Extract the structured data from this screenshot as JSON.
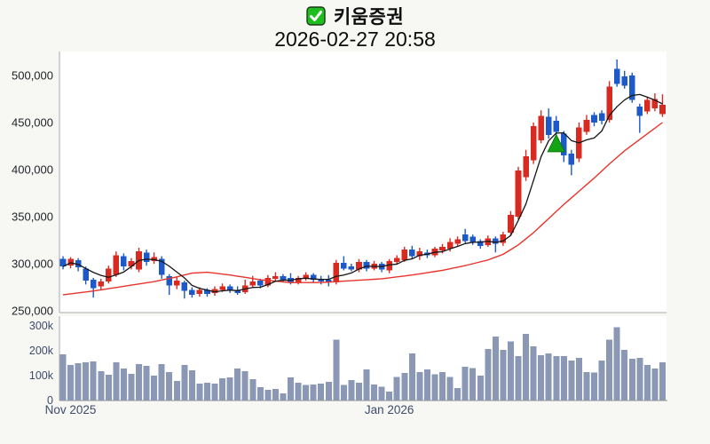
{
  "header": {
    "title": "키움증권",
    "subtitle": "2026-02-27 20:58",
    "checkbox_icon": "green-checked-checkbox"
  },
  "colors": {
    "up_candle": "#d92a21",
    "down_candle": "#1d59c8",
    "ma_fast": "#151515",
    "ma_slow": "#e8342c",
    "volume_bar": "#8a97b5",
    "marker_green": "#15a315",
    "marker_green_edge": "#0b7a0b",
    "axis_line": "#aaaaaa",
    "axis_baseline": "#8c8c8c",
    "price_label": "#1e2226",
    "volume_label": "#3e4b6b",
    "plot_bg": "#ffffff",
    "page_bg": "#f7f7f4",
    "checkbox_green": "#1fbe1f",
    "checkbox_border": "#1c3a1c"
  },
  "chart_data": {
    "type": "candlestick+volume",
    "title": "키움증권",
    "timestamp": "2026-02-27 20:58",
    "legend_position": "none",
    "grid": false,
    "price_axis": {
      "range": [
        250000,
        500000
      ],
      "ticks": [
        {
          "value": 250000,
          "label": "250,000"
        },
        {
          "value": 300000,
          "label": "300,000"
        },
        {
          "value": 350000,
          "label": "350,000"
        },
        {
          "value": 400000,
          "label": "400,000"
        },
        {
          "value": 450000,
          "label": "450,000"
        },
        {
          "value": 500000,
          "label": "500,000"
        }
      ]
    },
    "volume_axis": {
      "range": [
        0,
        300000
      ],
      "ticks": [
        {
          "value": 0,
          "label": "0"
        },
        {
          "value": 100000,
          "label": "100k"
        },
        {
          "value": 200000,
          "label": "200k"
        },
        {
          "value": 300000,
          "label": "300k"
        }
      ]
    },
    "x_ticks": [
      {
        "index": 1,
        "label": "Nov 2025"
      },
      {
        "index": 43,
        "label": "Jan 2026"
      }
    ],
    "candles_format": [
      "open",
      "high",
      "low",
      "close"
    ],
    "candles": [
      [
        305000,
        308000,
        294000,
        297000
      ],
      [
        298000,
        307000,
        295000,
        305000
      ],
      [
        304000,
        306000,
        292000,
        296000
      ],
      [
        295000,
        297000,
        278000,
        282000
      ],
      [
        283000,
        285000,
        264000,
        274000
      ],
      [
        276000,
        284000,
        272000,
        281000
      ],
      [
        281000,
        298000,
        279000,
        295000
      ],
      [
        288000,
        313000,
        286000,
        309000
      ],
      [
        308000,
        311000,
        293000,
        297000
      ],
      [
        297000,
        306000,
        294000,
        303000
      ],
      [
        294000,
        317000,
        291000,
        313000
      ],
      [
        312000,
        315000,
        298000,
        302000
      ],
      [
        303000,
        312000,
        300000,
        307000
      ],
      [
        305000,
        308000,
        284000,
        288000
      ],
      [
        287000,
        289000,
        267000,
        277000
      ],
      [
        277000,
        286000,
        273000,
        282000
      ],
      [
        280000,
        282000,
        263000,
        271000
      ],
      [
        272000,
        275000,
        264000,
        267000
      ],
      [
        268000,
        275000,
        265000,
        272000
      ],
      [
        272000,
        274000,
        265000,
        268000
      ],
      [
        269000,
        276000,
        266000,
        273000
      ],
      [
        272000,
        279000,
        270000,
        276000
      ],
      [
        276000,
        278000,
        269000,
        271000
      ],
      [
        272000,
        276000,
        267000,
        269000
      ],
      [
        270000,
        283000,
        268000,
        277000
      ],
      [
        277000,
        287000,
        275000,
        281000
      ],
      [
        282000,
        284000,
        274000,
        277000
      ],
      [
        277000,
        288000,
        275000,
        285000
      ],
      [
        284000,
        291000,
        281000,
        287000
      ],
      [
        287000,
        289000,
        280000,
        283000
      ],
      [
        285000,
        290000,
        278000,
        280000
      ],
      [
        280000,
        287000,
        278000,
        285000
      ],
      [
        284000,
        291000,
        282000,
        288000
      ],
      [
        288000,
        290000,
        280000,
        283000
      ],
      [
        284000,
        287000,
        278000,
        281000
      ],
      [
        283000,
        288000,
        276000,
        280000
      ],
      [
        280000,
        304000,
        278000,
        301000
      ],
      [
        301000,
        308000,
        293000,
        295000
      ],
      [
        297000,
        300000,
        292000,
        294000
      ],
      [
        294000,
        305000,
        291000,
        302000
      ],
      [
        302000,
        304000,
        292000,
        295000
      ],
      [
        295000,
        303000,
        293000,
        300000
      ],
      [
        300000,
        302000,
        291000,
        294000
      ],
      [
        293000,
        305000,
        290000,
        303000
      ],
      [
        302000,
        309000,
        299000,
        306000
      ],
      [
        304000,
        318000,
        302000,
        315000
      ],
      [
        315000,
        319000,
        305000,
        308000
      ],
      [
        308000,
        317000,
        304000,
        313000
      ],
      [
        312000,
        315000,
        306000,
        309000
      ],
      [
        309000,
        318000,
        307000,
        316000
      ],
      [
        314000,
        321000,
        311000,
        318000
      ],
      [
        316000,
        327000,
        313000,
        323000
      ],
      [
        321000,
        329000,
        318000,
        326000
      ],
      [
        331000,
        337000,
        322000,
        324000
      ],
      [
        329000,
        331000,
        320000,
        323000
      ],
      [
        324000,
        326000,
        316000,
        319000
      ],
      [
        320000,
        330000,
        318000,
        327000
      ],
      [
        327000,
        329000,
        312000,
        321000
      ],
      [
        322000,
        334000,
        319000,
        331000
      ],
      [
        333000,
        356000,
        330000,
        352000
      ],
      [
        350000,
        403000,
        347000,
        399000
      ],
      [
        392000,
        421000,
        388000,
        414000
      ],
      [
        410000,
        450000,
        406000,
        446000
      ],
      [
        431000,
        463000,
        428000,
        457000
      ],
      [
        456000,
        465000,
        433000,
        437000
      ],
      [
        452000,
        457000,
        435000,
        440000
      ],
      [
        438000,
        441000,
        408000,
        415000
      ],
      [
        417000,
        421000,
        394000,
        405000
      ],
      [
        412000,
        450000,
        408000,
        445000
      ],
      [
        440000,
        458000,
        437000,
        453000
      ],
      [
        458000,
        461000,
        446000,
        450000
      ],
      [
        460000,
        463000,
        448000,
        452000
      ],
      [
        453000,
        494000,
        450000,
        488000
      ],
      [
        507000,
        517000,
        488000,
        491000
      ],
      [
        499000,
        505000,
        486000,
        489000
      ],
      [
        500000,
        503000,
        471000,
        474000
      ],
      [
        467000,
        470000,
        439000,
        457000
      ],
      [
        462000,
        477000,
        459000,
        474000
      ],
      [
        465000,
        481000,
        462000,
        475000
      ],
      [
        459000,
        480000,
        456000,
        469000
      ]
    ],
    "volumes": [
      185000,
      143000,
      150000,
      154000,
      157000,
      118000,
      104000,
      153000,
      129000,
      107000,
      146000,
      139000,
      100000,
      146000,
      114000,
      79000,
      143000,
      121000,
      68000,
      71000,
      68000,
      89000,
      93000,
      129000,
      118000,
      86000,
      54000,
      43000,
      47000,
      28000,
      92000,
      72000,
      62000,
      65000,
      68000,
      75000,
      245000,
      62000,
      82000,
      72000,
      125000,
      65000,
      55000,
      35000,
      95000,
      110000,
      190000,
      115000,
      125000,
      105000,
      115000,
      95000,
      50000,
      135000,
      130000,
      100000,
      208000,
      258000,
      204000,
      238000,
      179000,
      268000,
      217000,
      182000,
      189000,
      179000,
      179000,
      161000,
      172000,
      114000,
      112000,
      161000,
      244000,
      295000,
      203000,
      168000,
      172000,
      143000,
      128000,
      153000
    ],
    "ma_fast": {
      "type": "sma",
      "period": 5,
      "source": "close"
    },
    "ma_slow_points": [
      [
        0,
        267000
      ],
      [
        4,
        271000
      ],
      [
        8,
        276000
      ],
      [
        12,
        281000
      ],
      [
        15,
        286000
      ],
      [
        17,
        290000
      ],
      [
        19,
        291000
      ],
      [
        22,
        288000
      ],
      [
        26,
        283000
      ],
      [
        30,
        280000
      ],
      [
        34,
        280000
      ],
      [
        38,
        282000
      ],
      [
        42,
        284000
      ],
      [
        46,
        288000
      ],
      [
        50,
        293000
      ],
      [
        53,
        298000
      ],
      [
        56,
        304000
      ],
      [
        58,
        310000
      ],
      [
        60,
        320000
      ],
      [
        62,
        333000
      ],
      [
        64,
        348000
      ],
      [
        66,
        363000
      ],
      [
        68,
        377000
      ],
      [
        70,
        391000
      ],
      [
        72,
        406000
      ],
      [
        74,
        420000
      ],
      [
        76,
        432000
      ],
      [
        78,
        444000
      ],
      [
        79,
        450000
      ]
    ],
    "marker": {
      "index": 65,
      "price": 428000,
      "shape": "triangle-up",
      "meaning": "buy-signal"
    }
  }
}
